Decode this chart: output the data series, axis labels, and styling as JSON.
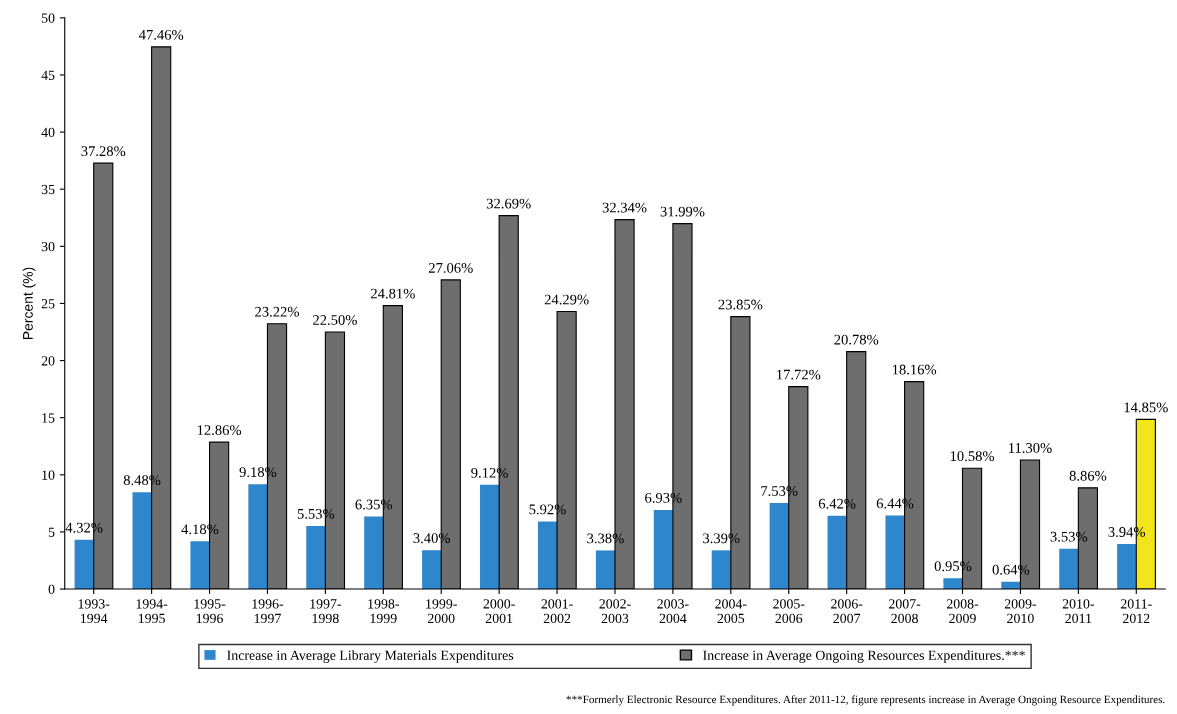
{
  "chart_data": {
    "type": "bar",
    "categories": [
      "1993-\n1994",
      "1994-\n1995",
      "1995-\n1996",
      "1996-\n1997",
      "1997-\n1998",
      "1998-\n1999",
      "1999-\n2000",
      "2000-\n2001",
      "2001-\n2002",
      "2002-\n2003",
      "2003-\n2004",
      "2004-\n2005",
      "2005-\n2006",
      "2006-\n2007",
      "2007-\n2008",
      "2008-\n2009",
      "2009-\n2010",
      "2010-\n2011",
      "2011-\n2012"
    ],
    "series": [
      {
        "name": "Increase in Average Library Materials Expenditures",
        "color": "#2e87cc",
        "values": [
          4.32,
          8.48,
          4.18,
          9.18,
          5.53,
          6.35,
          3.4,
          9.12,
          5.92,
          3.38,
          6.93,
          3.39,
          7.53,
          6.42,
          6.44,
          0.95,
          0.64,
          3.53,
          3.94
        ],
        "value_labels": [
          "4.32%",
          "8.48%",
          "4.18%",
          "9.18%",
          "5.53%",
          "6.35%",
          "3.40%",
          "9.12%",
          "5.92%",
          "3.38%",
          "6.93%",
          "3.39%",
          "7.53%",
          "6.42%",
          "6.44%",
          "0.95%",
          "0.64%",
          "3.53%",
          "3.94%"
        ]
      },
      {
        "name": "Increase in Average Ongoing Resources Expenditures.***",
        "color": "#6e6e6e",
        "colors": [
          "#6e6e6e",
          "#6e6e6e",
          "#6e6e6e",
          "#6e6e6e",
          "#6e6e6e",
          "#6e6e6e",
          "#6e6e6e",
          "#6e6e6e",
          "#6e6e6e",
          "#6e6e6e",
          "#6e6e6e",
          "#6e6e6e",
          "#6e6e6e",
          "#6e6e6e",
          "#6e6e6e",
          "#6e6e6e",
          "#6e6e6e",
          "#6e6e6e",
          "#f2e51c"
        ],
        "values": [
          37.28,
          47.46,
          12.86,
          23.22,
          22.5,
          24.81,
          27.06,
          32.69,
          24.29,
          32.34,
          31.99,
          23.85,
          17.72,
          20.78,
          18.16,
          10.58,
          11.3,
          8.86,
          14.85
        ],
        "value_labels": [
          "37.28%",
          "47.46%",
          "12.86%",
          "23.22%",
          "22.50%",
          "24.81%",
          "27.06%",
          "32.69%",
          "24.29%",
          "32.34%",
          "31.99%",
          "23.85%",
          "17.72%",
          "20.78%",
          "18.16%",
          "10.58%",
          "11.30%",
          "8.86%",
          "14.85%"
        ]
      }
    ],
    "ylabel": "Percent (%)",
    "ylim": [
      0,
      50
    ],
    "yticks": [
      0,
      5,
      10,
      15,
      20,
      25,
      30,
      35,
      40,
      45,
      50
    ],
    "grid": false,
    "legend": "bottom",
    "annotations": [
      "***Formerly Electronic Resource Expenditures. After 2011-12, figure represents increase in Average Ongoing Resource Expenditures."
    ]
  }
}
